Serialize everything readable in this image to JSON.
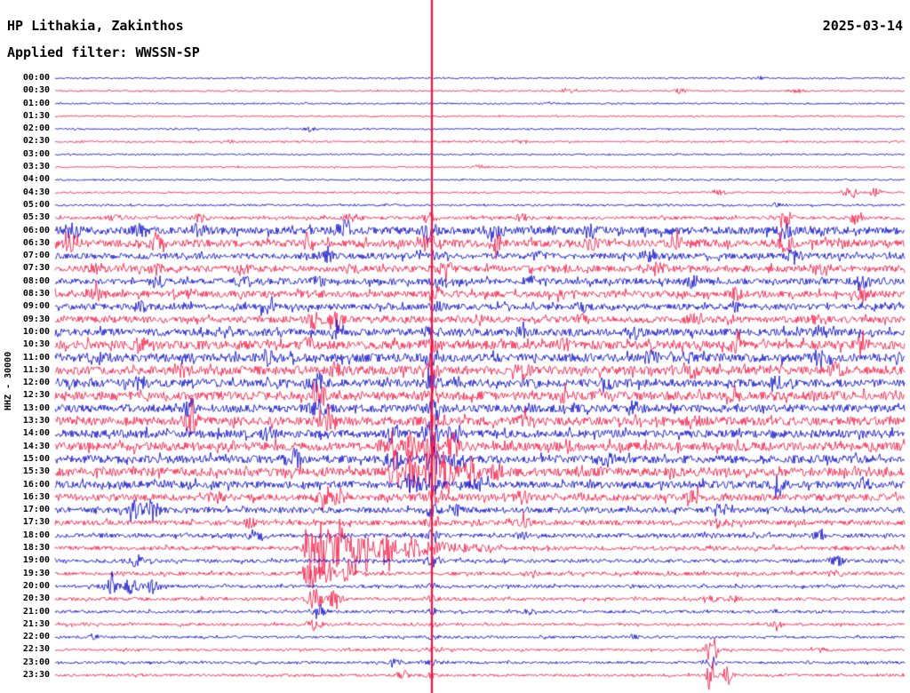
{
  "header": {
    "station": "HP Lithakia, Zakinthos",
    "filter_label": "Applied filter: WWSSN-SP",
    "date": "2025-03-14"
  },
  "left_axis": {
    "label": "HHZ - 30000"
  },
  "colors": {
    "blue": "#0000c8",
    "red": "#f5123f",
    "background": "#ffffff",
    "text": "#000000"
  },
  "chart_data": {
    "type": "line",
    "variant": "helicorder-seismogram",
    "row_interval_minutes": 30,
    "event_sigma": 0.008,
    "mainshock_line": {
      "pos": 0.4435,
      "color": "red"
    },
    "rows": [
      {
        "time": "00:00",
        "color": "blue",
        "base": 0.9,
        "events": [
          [
            0.83,
            1.5
          ]
        ]
      },
      {
        "time": "00:30",
        "color": "red",
        "base": 0.9,
        "events": [
          [
            0.605,
            4
          ],
          [
            0.735,
            3
          ],
          [
            0.875,
            2
          ]
        ]
      },
      {
        "time": "01:00",
        "color": "blue",
        "base": 0.9,
        "events": [
          [
            0.58,
            2
          ]
        ]
      },
      {
        "time": "01:30",
        "color": "red",
        "base": 0.8,
        "events": []
      },
      {
        "time": "02:00",
        "color": "blue",
        "base": 0.9,
        "events": [
          [
            0.3,
            1.5
          ]
        ]
      },
      {
        "time": "02:30",
        "color": "red",
        "base": 1.0,
        "events": [
          [
            0.21,
            2
          ],
          [
            0.55,
            2
          ]
        ]
      },
      {
        "time": "03:00",
        "color": "blue",
        "base": 0.9,
        "events": []
      },
      {
        "time": "03:30",
        "color": "red",
        "base": 0.9,
        "events": [
          [
            0.5,
            2
          ]
        ]
      },
      {
        "time": "04:00",
        "color": "blue",
        "base": 0.9,
        "events": []
      },
      {
        "time": "04:30",
        "color": "red",
        "base": 1.0,
        "events": [
          [
            0.78,
            2.5
          ],
          [
            0.935,
            5
          ],
          [
            0.965,
            4
          ]
        ]
      },
      {
        "time": "05:00",
        "color": "blue",
        "base": 1.2,
        "events": [
          [
            0.85,
            3
          ]
        ]
      },
      {
        "time": "05:30",
        "color": "red",
        "base": 1.8,
        "events": [
          [
            0.07,
            3
          ],
          [
            0.17,
            4
          ],
          [
            0.35,
            5
          ],
          [
            0.44,
            5
          ],
          [
            0.55,
            4
          ],
          [
            0.86,
            7
          ],
          [
            0.94,
            6
          ]
        ]
      },
      {
        "time": "06:00",
        "color": "blue",
        "base": 4.2,
        "events": [
          [
            0.02,
            8
          ],
          [
            0.1,
            6
          ],
          [
            0.17,
            6
          ],
          [
            0.34,
            9
          ],
          [
            0.44,
            8
          ],
          [
            0.52,
            7
          ],
          [
            0.63,
            6
          ],
          [
            0.86,
            7
          ]
        ]
      },
      {
        "time": "06:30",
        "color": "red",
        "base": 4.2,
        "events": [
          [
            0.02,
            9
          ],
          [
            0.12,
            7
          ],
          [
            0.3,
            5
          ],
          [
            0.44,
            8
          ],
          [
            0.52,
            6
          ],
          [
            0.63,
            5
          ],
          [
            0.73,
            7
          ],
          [
            0.86,
            6
          ]
        ]
      },
      {
        "time": "07:00",
        "color": "blue",
        "base": 3.4,
        "events": [
          [
            0.32,
            6
          ],
          [
            0.44,
            5
          ],
          [
            0.57,
            4
          ],
          [
            0.7,
            7
          ],
          [
            0.87,
            7
          ]
        ]
      },
      {
        "time": "07:30",
        "color": "red",
        "base": 3.6,
        "events": [
          [
            0.05,
            5
          ],
          [
            0.12,
            6
          ],
          [
            0.22,
            5
          ],
          [
            0.35,
            4
          ],
          [
            0.46,
            6
          ],
          [
            0.6,
            5
          ],
          [
            0.71,
            6
          ],
          [
            0.9,
            5
          ]
        ]
      },
      {
        "time": "08:00",
        "color": "blue",
        "base": 3.4,
        "events": [
          [
            0.12,
            6
          ],
          [
            0.22,
            5
          ],
          [
            0.31,
            4
          ],
          [
            0.45,
            5
          ],
          [
            0.56,
            4
          ],
          [
            0.75,
            5
          ],
          [
            0.95,
            5
          ]
        ]
      },
      {
        "time": "08:30",
        "color": "red",
        "base": 3.6,
        "events": [
          [
            0.05,
            5
          ],
          [
            0.16,
            4
          ],
          [
            0.3,
            5
          ],
          [
            0.45,
            5
          ],
          [
            0.6,
            4
          ],
          [
            0.8,
            5
          ],
          [
            0.95,
            6
          ]
        ]
      },
      {
        "time": "09:00",
        "color": "blue",
        "base": 3.4,
        "events": [
          [
            0.1,
            4
          ],
          [
            0.25,
            5
          ],
          [
            0.45,
            4
          ],
          [
            0.62,
            4
          ],
          [
            0.8,
            4
          ]
        ]
      },
      {
        "time": "09:30",
        "color": "red",
        "base": 3.6,
        "events": [
          [
            0.305,
            9
          ],
          [
            0.33,
            6
          ],
          [
            0.5,
            4
          ],
          [
            0.62,
            4
          ],
          [
            0.75,
            4
          ],
          [
            0.9,
            4
          ]
        ]
      },
      {
        "time": "10:00",
        "color": "blue",
        "base": 4.0,
        "events": [
          [
            0.2,
            5
          ],
          [
            0.33,
            5
          ],
          [
            0.4435,
            6
          ],
          [
            0.55,
            5
          ],
          [
            0.68,
            5
          ],
          [
            0.9,
            6
          ]
        ]
      },
      {
        "time": "10:30",
        "color": "red",
        "base": 4.8,
        "events": [
          [
            0.1,
            6
          ],
          [
            0.3,
            5
          ],
          [
            0.4435,
            8
          ],
          [
            0.6,
            5
          ],
          [
            0.8,
            6
          ],
          [
            0.95,
            7
          ]
        ]
      },
      {
        "time": "11:00",
        "color": "blue",
        "base": 4.8,
        "events": [
          [
            0.05,
            7
          ],
          [
            0.25,
            6
          ],
          [
            0.4435,
            8
          ],
          [
            0.7,
            6
          ],
          [
            0.9,
            7
          ]
        ]
      },
      {
        "time": "11:30",
        "color": "red",
        "base": 4.8,
        "events": [
          [
            0.15,
            6
          ],
          [
            0.33,
            7
          ],
          [
            0.4435,
            8
          ],
          [
            0.55,
            6
          ],
          [
            0.75,
            6
          ],
          [
            0.92,
            6
          ]
        ]
      },
      {
        "time": "12:00",
        "color": "blue",
        "base": 4.4,
        "events": [
          [
            0.1,
            5
          ],
          [
            0.31,
            8
          ],
          [
            0.4435,
            7
          ],
          [
            0.65,
            5
          ],
          [
            0.85,
            5
          ]
        ]
      },
      {
        "time": "12:30",
        "color": "red",
        "base": 4.8,
        "events": [
          [
            0.31,
            11
          ],
          [
            0.4435,
            8
          ],
          [
            0.6,
            5
          ],
          [
            0.8,
            5
          ]
        ]
      },
      {
        "time": "13:00",
        "color": "blue",
        "base": 4.4,
        "events": [
          [
            0.16,
            9
          ],
          [
            0.31,
            8
          ],
          [
            0.4435,
            7
          ],
          [
            0.68,
            5
          ]
        ]
      },
      {
        "time": "13:30",
        "color": "red",
        "base": 4.8,
        "events": [
          [
            0.16,
            11
          ],
          [
            0.32,
            8
          ],
          [
            0.4435,
            8
          ],
          [
            0.55,
            5
          ],
          [
            0.75,
            5
          ]
        ]
      },
      {
        "time": "14:00",
        "color": "blue",
        "base": 4.4,
        "events": [
          [
            0.25,
            5
          ],
          [
            0.4,
            9
          ],
          [
            0.4435,
            11
          ],
          [
            0.47,
            8
          ]
        ]
      },
      {
        "time": "14:30",
        "color": "red",
        "base": 4.8,
        "events": [
          [
            0.395,
            14
          ],
          [
            0.42,
            16
          ],
          [
            0.4435,
            18
          ],
          [
            0.47,
            12
          ],
          [
            0.6,
            5
          ]
        ]
      },
      {
        "time": "15:00",
        "color": "blue",
        "base": 4.4,
        "events": [
          [
            0.28,
            10
          ],
          [
            0.4,
            9
          ],
          [
            0.4435,
            12
          ],
          [
            0.47,
            10
          ],
          [
            0.65,
            5
          ]
        ]
      },
      {
        "time": "15:30",
        "color": "red",
        "base": 4.8,
        "events": [
          [
            0.4,
            20
          ],
          [
            0.42,
            26
          ],
          [
            0.4435,
            30
          ],
          [
            0.46,
            22
          ],
          [
            0.49,
            14
          ],
          [
            0.52,
            8
          ]
        ]
      },
      {
        "time": "16:00",
        "color": "blue",
        "base": 4.0,
        "events": [
          [
            0.42,
            12
          ],
          [
            0.4435,
            12
          ],
          [
            0.5,
            7
          ],
          [
            0.85,
            6
          ],
          [
            0.95,
            6
          ]
        ]
      },
      {
        "time": "16:30",
        "color": "red",
        "base": 3.8,
        "events": [
          [
            0.19,
            5
          ],
          [
            0.315,
            12
          ],
          [
            0.335,
            9
          ],
          [
            0.4435,
            6
          ],
          [
            0.55,
            5
          ],
          [
            0.75,
            5
          ]
        ]
      },
      {
        "time": "17:00",
        "color": "blue",
        "base": 3.2,
        "events": [
          [
            0.095,
            9
          ],
          [
            0.115,
            10
          ],
          [
            0.4435,
            5
          ],
          [
            0.47,
            5
          ],
          [
            0.78,
            5
          ]
        ]
      },
      {
        "time": "17:30",
        "color": "red",
        "base": 2.8,
        "events": [
          [
            0.23,
            4
          ],
          [
            0.4435,
            4
          ],
          [
            0.55,
            4
          ],
          [
            0.78,
            5
          ]
        ]
      },
      {
        "time": "18:00",
        "color": "blue",
        "base": 2.4,
        "events": [
          [
            0.235,
            5
          ],
          [
            0.4435,
            4
          ],
          [
            0.55,
            4
          ],
          [
            0.9,
            4
          ]
        ]
      },
      {
        "time": "18:30",
        "color": "red",
        "base": 2.3,
        "events": [
          [
            0.3,
            40,
            0.006
          ],
          [
            0.315,
            34,
            0.008
          ],
          [
            0.335,
            26,
            0.01
          ],
          [
            0.36,
            18,
            0.012
          ],
          [
            0.39,
            13,
            0.014
          ],
          [
            0.42,
            9,
            0.016
          ],
          [
            0.45,
            6,
            0.018
          ],
          [
            0.49,
            4,
            0.02
          ]
        ]
      },
      {
        "time": "19:00",
        "color": "blue",
        "base": 2.1,
        "events": [
          [
            0.095,
            6
          ],
          [
            0.4435,
            4
          ],
          [
            0.92,
            5
          ]
        ]
      },
      {
        "time": "19:30",
        "color": "red",
        "base": 2.0,
        "events": [
          [
            0.3,
            20
          ],
          [
            0.32,
            14
          ],
          [
            0.345,
            9
          ],
          [
            0.56,
            4
          ],
          [
            0.92,
            3
          ]
        ]
      },
      {
        "time": "20:00",
        "color": "blue",
        "base": 1.8,
        "events": [
          [
            0.065,
            8
          ],
          [
            0.09,
            9
          ],
          [
            0.115,
            7
          ],
          [
            0.4435,
            3
          ]
        ]
      },
      {
        "time": "20:30",
        "color": "red",
        "base": 1.8,
        "events": [
          [
            0.305,
            14
          ],
          [
            0.33,
            10
          ],
          [
            0.4435,
            3
          ],
          [
            0.77,
            4
          ],
          [
            0.8,
            4
          ]
        ]
      },
      {
        "time": "21:00",
        "color": "blue",
        "base": 1.6,
        "events": [
          [
            0.31,
            8
          ],
          [
            0.4435,
            3
          ],
          [
            0.56,
            3
          ]
        ]
      },
      {
        "time": "21:30",
        "color": "red",
        "base": 1.5,
        "events": [
          [
            0.305,
            6
          ],
          [
            0.4435,
            2.5
          ],
          [
            0.85,
            3
          ]
        ]
      },
      {
        "time": "22:00",
        "color": "blue",
        "base": 1.4,
        "events": [
          [
            0.05,
            2
          ],
          [
            0.4435,
            2.5
          ],
          [
            0.68,
            2
          ]
        ]
      },
      {
        "time": "22:30",
        "color": "red",
        "base": 1.4,
        "events": [
          [
            0.4435,
            2.5
          ],
          [
            0.772,
            8
          ],
          [
            0.9,
            2
          ]
        ]
      },
      {
        "time": "23:00",
        "color": "blue",
        "base": 1.4,
        "events": [
          [
            0.4,
            3
          ],
          [
            0.4435,
            2.5
          ],
          [
            0.772,
            6
          ]
        ]
      },
      {
        "time": "23:30",
        "color": "red",
        "base": 1.4,
        "events": [
          [
            0.41,
            3
          ],
          [
            0.4435,
            2.5
          ],
          [
            0.772,
            24,
            0.004
          ],
          [
            0.792,
            10,
            0.006
          ]
        ]
      }
    ]
  }
}
